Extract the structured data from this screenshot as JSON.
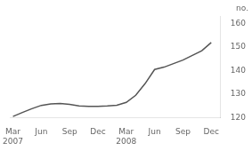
{
  "chart_data": {
    "type": "line",
    "ylabel": "no.",
    "x": [
      0,
      1,
      2,
      3,
      4,
      5,
      6,
      7,
      8,
      9,
      10,
      11,
      12,
      13,
      14,
      15,
      16,
      17,
      18,
      19,
      20,
      21
    ],
    "values": [
      120.5,
      122.2,
      123.8,
      125.2,
      125.8,
      126.0,
      125.6,
      125.0,
      124.8,
      124.8,
      125.0,
      125.3,
      126.5,
      129.5,
      134.5,
      140.5,
      141.5,
      143.0,
      144.5,
      146.5,
      148.5,
      152.0
    ],
    "color": "#555555",
    "xlim": [
      -0.3,
      22.0
    ],
    "xticks": [
      {
        "value": 0,
        "label": "Mar\n2007"
      },
      {
        "value": 3,
        "label": "Jun"
      },
      {
        "value": 6,
        "label": "Sep"
      },
      {
        "value": 9,
        "label": "Dec"
      },
      {
        "value": 12,
        "label": "Mar\n2008"
      },
      {
        "value": 15,
        "label": "Jun"
      },
      {
        "value": 18,
        "label": "Sep"
      },
      {
        "value": 21,
        "label": "Dec"
      }
    ],
    "ylim": [
      120,
      163
    ],
    "yticks": [
      120,
      130,
      140,
      150,
      160
    ],
    "grid": false
  }
}
